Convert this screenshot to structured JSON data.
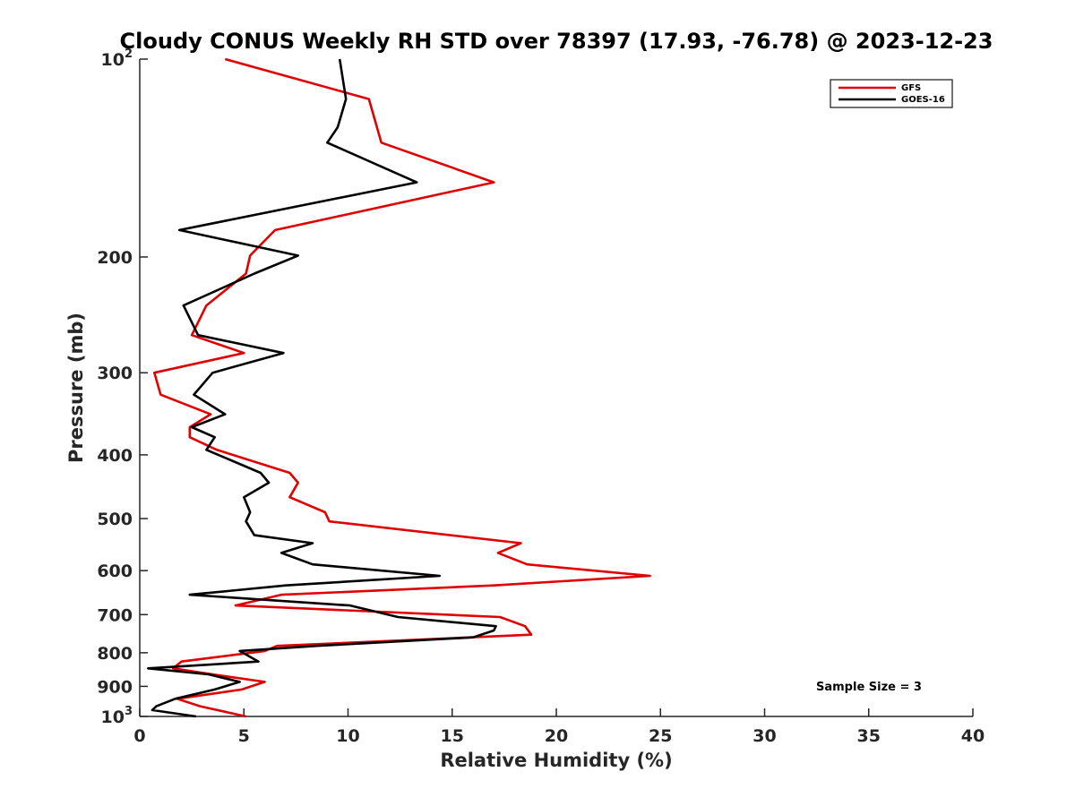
{
  "chart_data": {
    "type": "line",
    "title": "Cloudy CONUS Weekly RH STD over 78397 (17.93, -76.78) @ 2023-12-23",
    "xlabel": "Relative Humidity (%)",
    "ylabel": "Pressure (mb)",
    "xlim": [
      0,
      40
    ],
    "ylim": [
      100,
      1000
    ],
    "y_scale": "log",
    "y_reversed": true,
    "x_ticks": [
      0,
      5,
      10,
      15,
      20,
      25,
      30,
      35,
      40
    ],
    "x_tick_labels": [
      "0",
      "5",
      "10",
      "15",
      "20",
      "25",
      "30",
      "35",
      "40"
    ],
    "y_ticks": [
      100,
      200,
      300,
      400,
      500,
      600,
      700,
      800,
      900,
      1000
    ],
    "y_tick_labels": [
      {
        "base": "10",
        "exp": "2"
      },
      {
        "base": "200",
        "exp": ""
      },
      {
        "base": "300",
        "exp": ""
      },
      {
        "base": "400",
        "exp": ""
      },
      {
        "base": "500",
        "exp": ""
      },
      {
        "base": "600",
        "exp": ""
      },
      {
        "base": "700",
        "exp": ""
      },
      {
        "base": "800",
        "exp": ""
      },
      {
        "base": "900",
        "exp": ""
      },
      {
        "base": "10",
        "exp": "3"
      }
    ],
    "grid": false,
    "legend_position": "top-right",
    "annotation": "Sample Size = 3",
    "series": [
      {
        "name": "GFS",
        "color": "#e00000",
        "points": [
          [
            4.1,
            100
          ],
          [
            11.0,
            115
          ],
          [
            11.6,
            134
          ],
          [
            17.0,
            154
          ],
          [
            6.5,
            182
          ],
          [
            5.3,
            199
          ],
          [
            5.1,
            212
          ],
          [
            3.2,
            237
          ],
          [
            2.5,
            263
          ],
          [
            5.0,
            280
          ],
          [
            0.7,
            300
          ],
          [
            1.0,
            324
          ],
          [
            3.4,
            347
          ],
          [
            2.4,
            363
          ],
          [
            2.4,
            376
          ],
          [
            3.7,
            393
          ],
          [
            7.2,
            426
          ],
          [
            7.6,
            441
          ],
          [
            7.2,
            464
          ],
          [
            8.9,
            489
          ],
          [
            9.1,
            505
          ],
          [
            18.3,
            545
          ],
          [
            17.2,
            564
          ],
          [
            18.6,
            587
          ],
          [
            24.5,
            611
          ],
          [
            17.0,
            632
          ],
          [
            6.8,
            653
          ],
          [
            4.6,
            678
          ],
          [
            17.3,
            706
          ],
          [
            18.5,
            729
          ],
          [
            18.8,
            751
          ],
          [
            6.6,
            781
          ],
          [
            6.0,
            795
          ],
          [
            2.0,
            825
          ],
          [
            1.6,
            845
          ],
          [
            3.5,
            863
          ],
          [
            6.0,
            886
          ],
          [
            4.9,
            910
          ],
          [
            1.8,
            940
          ],
          [
            2.9,
            965
          ],
          [
            5.1,
            1000
          ]
        ]
      },
      {
        "name": "GOES-16",
        "color": "#000000",
        "points": [
          [
            9.6,
            100
          ],
          [
            9.9,
            115
          ],
          [
            9.5,
            127
          ],
          [
            9.0,
            134
          ],
          [
            13.3,
            154
          ],
          [
            1.9,
            182
          ],
          [
            7.6,
            199
          ],
          [
            5.5,
            212
          ],
          [
            2.1,
            237
          ],
          [
            2.8,
            263
          ],
          [
            6.9,
            280
          ],
          [
            3.5,
            300
          ],
          [
            2.6,
            324
          ],
          [
            4.1,
            347
          ],
          [
            2.5,
            363
          ],
          [
            3.6,
            376
          ],
          [
            3.2,
            393
          ],
          [
            5.8,
            426
          ],
          [
            6.2,
            441
          ],
          [
            5.0,
            464
          ],
          [
            5.3,
            489
          ],
          [
            5.1,
            505
          ],
          [
            5.5,
            530
          ],
          [
            8.3,
            545
          ],
          [
            6.8,
            564
          ],
          [
            8.3,
            587
          ],
          [
            14.4,
            611
          ],
          [
            7.0,
            632
          ],
          [
            2.4,
            653
          ],
          [
            10.1,
            678
          ],
          [
            12.4,
            706
          ],
          [
            17.1,
            729
          ],
          [
            17.0,
            740
          ],
          [
            16.0,
            758
          ],
          [
            8.5,
            781
          ],
          [
            4.8,
            795
          ],
          [
            5.7,
            825
          ],
          [
            0.4,
            845
          ],
          [
            3.3,
            863
          ],
          [
            4.8,
            886
          ],
          [
            3.6,
            910
          ],
          [
            1.7,
            940
          ],
          [
            0.8,
            965
          ],
          [
            0.6,
            978
          ],
          [
            2.7,
            1000
          ]
        ]
      }
    ]
  }
}
